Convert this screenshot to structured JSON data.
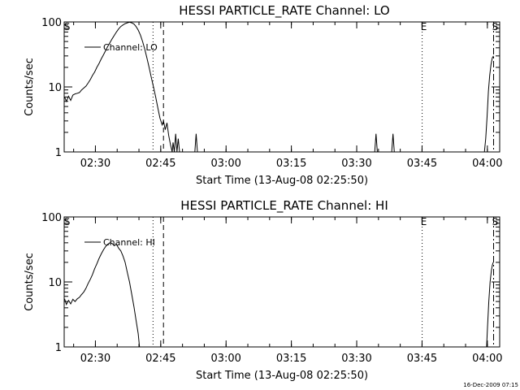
{
  "footer": {
    "timestamp": "16-Dec-2009 07:15"
  },
  "chart_data": [
    {
      "type": "line",
      "title": "HESSI PARTICLE_RATE Channel: LO",
      "xlabel": "Start Time (13-Aug-08 02:25:50)",
      "ylabel": "Counts/sec",
      "yscale": "log",
      "ylim": [
        1,
        100
      ],
      "y_ticks": [
        {
          "value": 1,
          "label": "1"
        },
        {
          "value": 10,
          "label": "10"
        },
        {
          "value": 100,
          "label": "100"
        }
      ],
      "xlim": [
        -3,
        97
      ],
      "x_unit": "minutes after 02:25:50",
      "x_ticks": [
        {
          "value": 4.17,
          "label": "02:30"
        },
        {
          "value": 19.17,
          "label": "02:45"
        },
        {
          "value": 34.17,
          "label": "03:00"
        },
        {
          "value": 49.17,
          "label": "03:15"
        },
        {
          "value": 64.17,
          "label": "03:30"
        },
        {
          "value": 79.17,
          "label": "03:45"
        },
        {
          "value": 94.17,
          "label": "04:00"
        }
      ],
      "legend": {
        "position": "top-left",
        "label": "Channel: LO"
      },
      "markers": [
        {
          "x": -2.9,
          "label": "S",
          "style": "none"
        },
        {
          "x": 17.4,
          "label": "",
          "style": "dotted"
        },
        {
          "x": 19.8,
          "label": "",
          "style": "dashed"
        },
        {
          "x": 79.2,
          "label": "E",
          "style": "dotted"
        },
        {
          "x": 95.6,
          "label": "S",
          "style": "dashdot"
        }
      ],
      "series": [
        {
          "name": "Channel: LO",
          "segments": [
            [
              [
                -2.9,
                7.0
              ],
              [
                -2.5,
                6.0
              ],
              [
                -2,
                7.2
              ],
              [
                -1.5,
                6.2
              ],
              [
                -1,
                7.5
              ],
              [
                -0.5,
                7.8
              ],
              [
                0,
                8.0
              ],
              [
                0.5,
                8.2
              ],
              [
                1,
                9.0
              ],
              [
                1.5,
                9.6
              ],
              [
                2,
                10.3
              ],
              [
                2.5,
                11.5
              ],
              [
                3,
                13
              ],
              [
                3.5,
                15
              ],
              [
                4,
                17
              ],
              [
                4.5,
                20
              ],
              [
                5,
                23
              ],
              [
                5.5,
                27
              ],
              [
                6,
                31
              ],
              [
                6.5,
                36
              ],
              [
                7,
                42
              ],
              [
                7.5,
                48
              ],
              [
                8,
                55
              ],
              [
                8.5,
                62
              ],
              [
                9,
                70
              ],
              [
                9.5,
                78
              ],
              [
                10,
                85
              ],
              [
                10.5,
                90
              ],
              [
                11,
                94
              ],
              [
                11.5,
                97
              ],
              [
                12,
                99
              ],
              [
                12.5,
                97
              ],
              [
                13,
                93
              ],
              [
                13.5,
                85
              ],
              [
                14,
                75
              ],
              [
                14.5,
                63
              ],
              [
                15,
                50
              ],
              [
                15.5,
                38
              ],
              [
                16,
                28
              ],
              [
                16.5,
                20
              ],
              [
                17,
                14
              ],
              [
                17.5,
                10
              ],
              [
                18,
                7
              ],
              [
                18.5,
                4.8
              ],
              [
                19,
                3.3
              ],
              [
                19.5,
                2.6
              ],
              [
                19.8,
                3.0
              ],
              [
                20.2,
                2.2
              ],
              [
                20.6,
                2.8
              ],
              [
                21,
                1.8
              ],
              [
                21.4,
                1.3
              ],
              [
                21.8,
                1.0
              ],
              [
                22,
                1.4
              ],
              [
                22.3,
                1.0
              ],
              [
                22.6,
                1.9
              ],
              [
                22.9,
                1.0
              ],
              [
                23.2,
                1.6
              ],
              [
                23.5,
                1.0
              ]
            ],
            [
              [
                27.0,
                1.0
              ],
              [
                27.3,
                1.9
              ],
              [
                27.6,
                1.0
              ]
            ],
            [
              [
                68.3,
                1.0
              ],
              [
                68.6,
                1.9
              ],
              [
                68.9,
                1.0
              ]
            ],
            [
              [
                72.2,
                1.0
              ],
              [
                72.5,
                1.9
              ],
              [
                72.8,
                1.0
              ]
            ],
            [
              [
                93.5,
                1.0
              ],
              [
                93.8,
                1.6
              ],
              [
                94.1,
                3.5
              ],
              [
                94.4,
                8.5
              ],
              [
                94.7,
                15
              ],
              [
                95.0,
                22
              ],
              [
                95.3,
                28
              ],
              [
                95.6,
                30
              ]
            ]
          ]
        }
      ]
    },
    {
      "type": "line",
      "title": "HESSI PARTICLE_RATE Channel: HI",
      "xlabel": "Start Time (13-Aug-08 02:25:50)",
      "ylabel": "Counts/sec",
      "yscale": "log",
      "ylim": [
        1,
        100
      ],
      "y_ticks": [
        {
          "value": 1,
          "label": "1"
        },
        {
          "value": 10,
          "label": "10"
        },
        {
          "value": 100,
          "label": "100"
        }
      ],
      "xlim": [
        -3,
        97
      ],
      "x_unit": "minutes after 02:25:50",
      "x_ticks": [
        {
          "value": 4.17,
          "label": "02:30"
        },
        {
          "value": 19.17,
          "label": "02:45"
        },
        {
          "value": 34.17,
          "label": "03:00"
        },
        {
          "value": 49.17,
          "label": "03:15"
        },
        {
          "value": 64.17,
          "label": "03:30"
        },
        {
          "value": 79.17,
          "label": "03:45"
        },
        {
          "value": 94.17,
          "label": "04:00"
        }
      ],
      "legend": {
        "position": "top-left",
        "label": "Channel: HI"
      },
      "markers": [
        {
          "x": -2.9,
          "label": "S",
          "style": "none"
        },
        {
          "x": 17.4,
          "label": "",
          "style": "dotted"
        },
        {
          "x": 19.8,
          "label": "",
          "style": "dashed"
        },
        {
          "x": 79.2,
          "label": "E",
          "style": "dotted"
        },
        {
          "x": 95.6,
          "label": "S",
          "style": "dashdot"
        }
      ],
      "series": [
        {
          "name": "Channel: HI",
          "segments": [
            [
              [
                -2.9,
                5.5
              ],
              [
                -2.5,
                4.5
              ],
              [
                -2,
                5.2
              ],
              [
                -1.5,
                4.6
              ],
              [
                -1,
                5.4
              ],
              [
                -0.5,
                5.0
              ],
              [
                0,
                5.5
              ],
              [
                0.5,
                5.8
              ],
              [
                1,
                6.4
              ],
              [
                1.5,
                7.0
              ],
              [
                2,
                8.0
              ],
              [
                2.5,
                9.5
              ],
              [
                3,
                11
              ],
              [
                3.5,
                13
              ],
              [
                4,
                16
              ],
              [
                4.5,
                19
              ],
              [
                5,
                23
              ],
              [
                5.5,
                27
              ],
              [
                6,
                31
              ],
              [
                6.5,
                35
              ],
              [
                7,
                38
              ],
              [
                7.5,
                40
              ],
              [
                8,
                39
              ],
              [
                8.5,
                36
              ],
              [
                9,
                38
              ],
              [
                9.5,
                33
              ],
              [
                10,
                30
              ],
              [
                10.5,
                25
              ],
              [
                11,
                20
              ],
              [
                11.5,
                14
              ],
              [
                12,
                10
              ],
              [
                12.5,
                6.5
              ],
              [
                13,
                4.2
              ],
              [
                13.5,
                2.6
              ],
              [
                14,
                1.6
              ],
              [
                14.3,
                1.0
              ]
            ],
            [
              [
                94.0,
                1.0
              ],
              [
                94.2,
                2.0
              ],
              [
                94.5,
                5.0
              ],
              [
                94.8,
                10
              ],
              [
                95.1,
                15
              ],
              [
                95.3,
                18
              ],
              [
                95.5,
                20
              ]
            ]
          ]
        }
      ]
    }
  ]
}
